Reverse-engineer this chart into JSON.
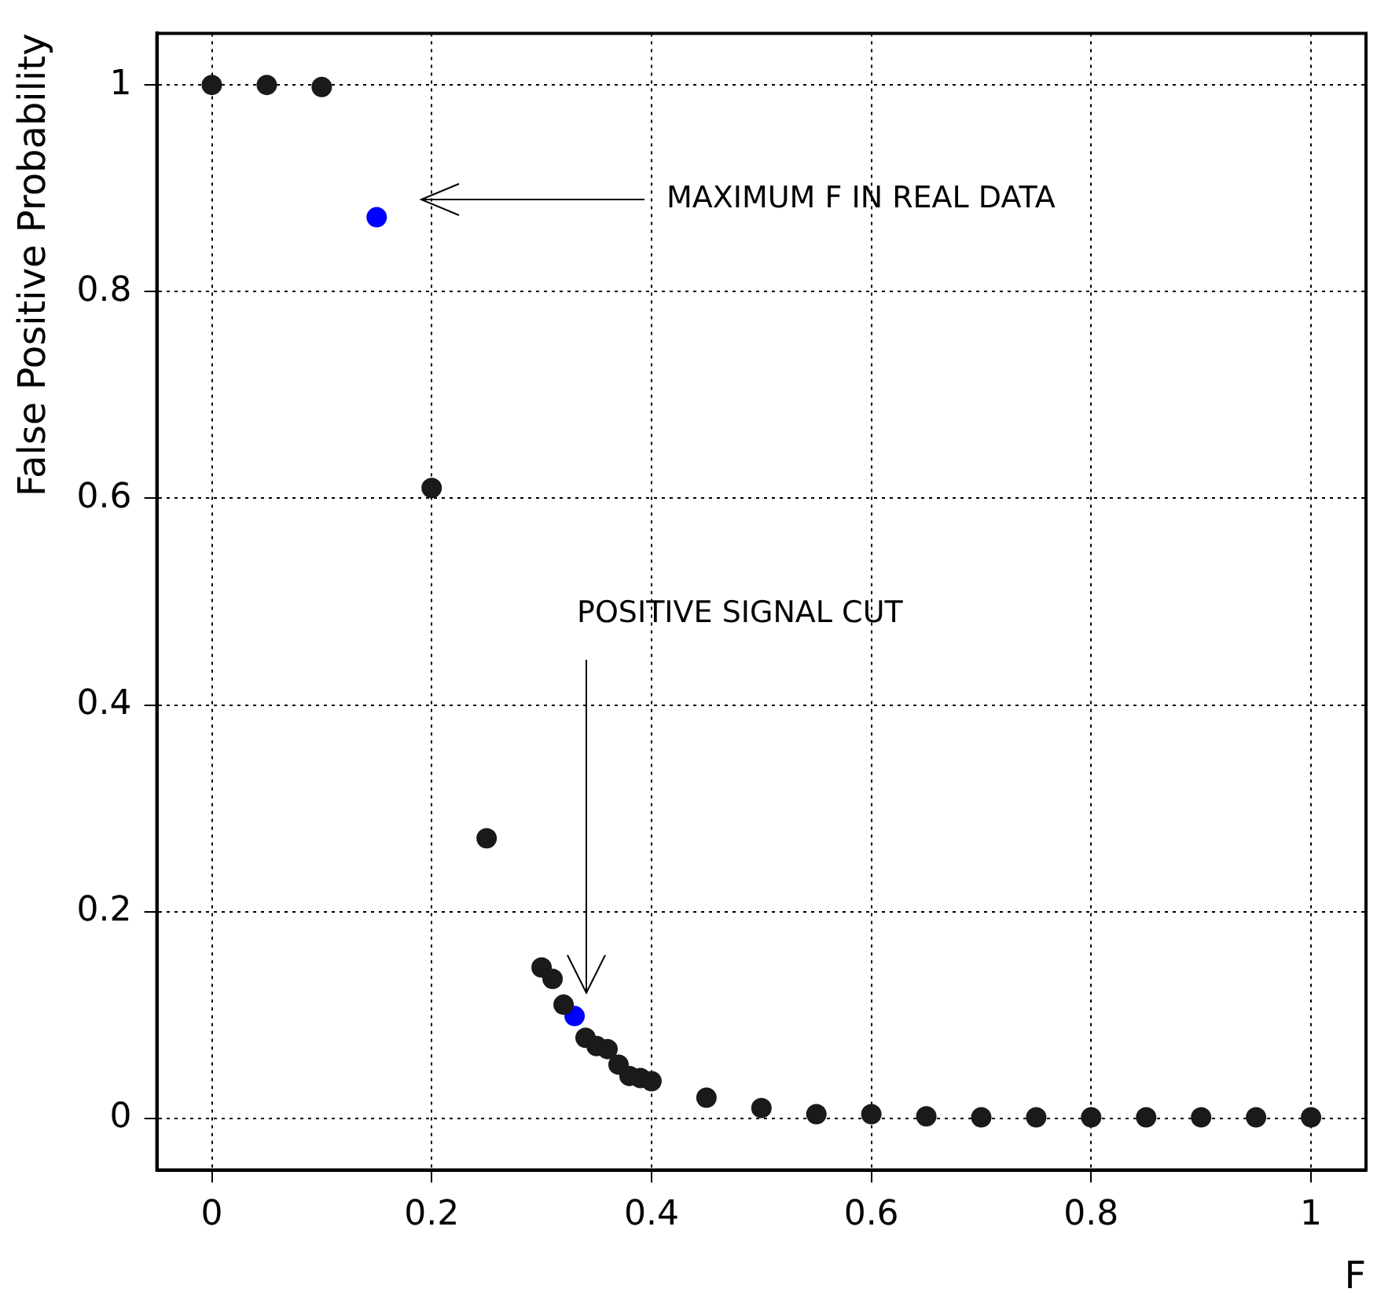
{
  "chart_data": {
    "type": "scatter",
    "xlabel": "F",
    "ylabel": "False Positive Probability",
    "xlim": [
      -0.05,
      1.05
    ],
    "ylim": [
      -0.05,
      1.05
    ],
    "xticks": [
      0,
      0.2,
      0.4,
      0.6,
      0.8,
      1
    ],
    "yticks": [
      0,
      0.2,
      0.4,
      0.6,
      0.8,
      1
    ],
    "grid": true,
    "legend": false,
    "marker": "circle",
    "series": [
      {
        "color": "#1a1a1a",
        "x": [
          0,
          0.05,
          0.1,
          0.2,
          0.25,
          0.3,
          0.31,
          0.32,
          0.34,
          0.35,
          0.36,
          0.37,
          0.38,
          0.39,
          0.4,
          0.45,
          0.5,
          0.55,
          0.6,
          0.65,
          0.7,
          0.75,
          0.8,
          0.85,
          0.9,
          0.95,
          1
        ],
        "values": [
          1,
          1,
          0.998,
          0.61,
          0.271,
          0.146,
          0.135,
          0.11,
          0.078,
          0.07,
          0.067,
          0.052,
          0.041,
          0.039,
          0.036,
          0.02,
          0.01,
          0.004,
          0.004,
          0.002,
          0.001,
          0.001,
          0.001,
          0.001,
          0.001,
          0.001,
          0.001
        ]
      },
      {
        "color": "#0000ff",
        "x": [
          0.15,
          0.33
        ],
        "values": [
          0.872,
          0.099
        ]
      }
    ],
    "annotations": [
      "MAXIMUM F IN REAL DATA",
      "POSITIVE SIGNAL CUT"
    ]
  }
}
